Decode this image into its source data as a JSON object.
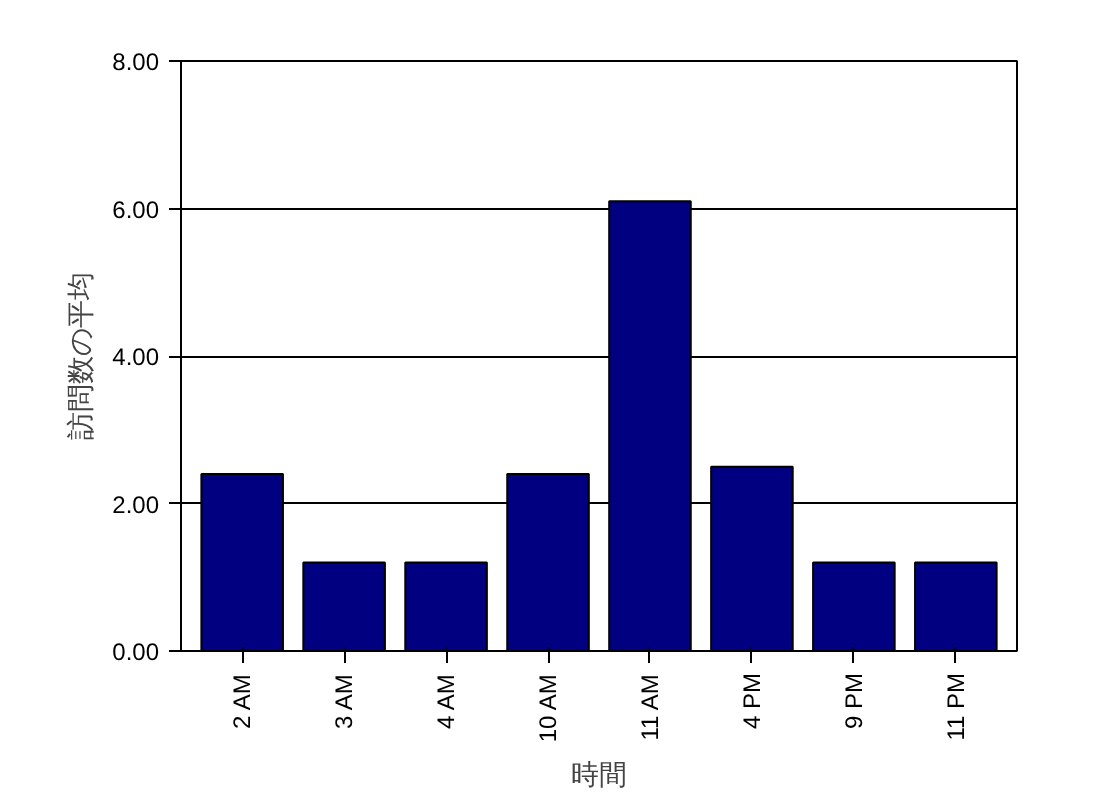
{
  "chart_data": {
    "type": "bar",
    "xlabel": "時間",
    "ylabel": "訪問数の平均",
    "categories": [
      "2 AM",
      "3 AM",
      "4 AM",
      "10 AM",
      "11 AM",
      "4 PM",
      "9 PM",
      "11 PM"
    ],
    "values": [
      2.4,
      1.2,
      1.2,
      2.4,
      6.1,
      2.5,
      1.2,
      1.2
    ],
    "color": "#000080",
    "ylim": [
      0,
      8
    ],
    "yticks": [
      {
        "value": 0,
        "label": "0.00"
      },
      {
        "value": 2,
        "label": "2.00"
      },
      {
        "value": 4,
        "label": "4.00"
      },
      {
        "value": 6,
        "label": "6.00"
      },
      {
        "value": 8,
        "label": "8.00"
      }
    ],
    "grid": "y"
  }
}
